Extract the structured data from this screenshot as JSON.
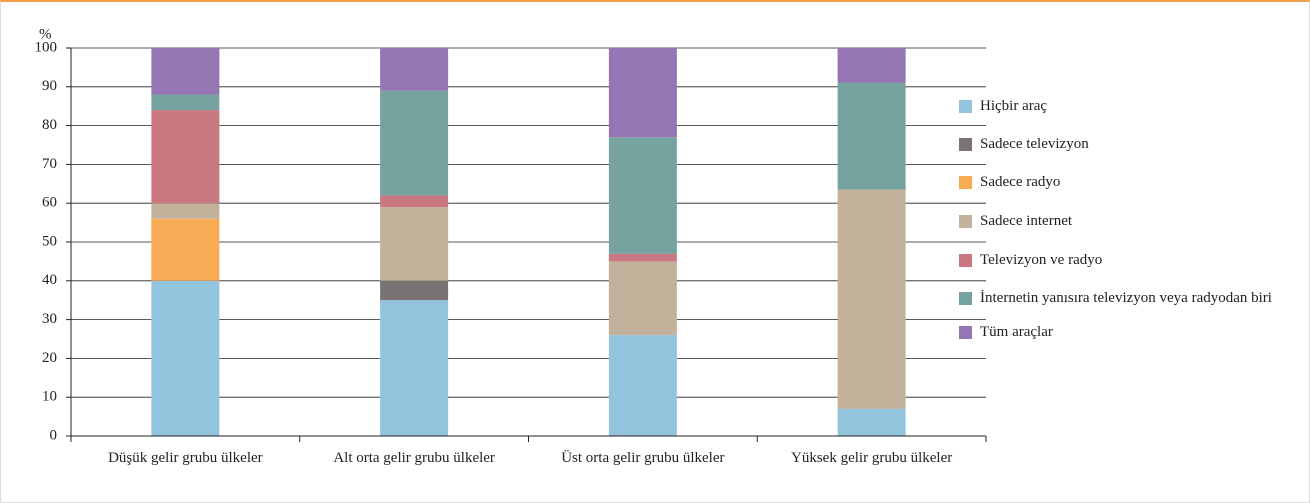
{
  "chart_data": {
    "type": "stacked_bar",
    "ylabel": "%",
    "categories": [
      "Düşük gelir grubu ülkeler",
      "Alt orta gelir grubu ülkeler",
      "Üst orta gelir grubu ülkeler",
      "Yüksek gelir grubu ülkeler"
    ],
    "series": [
      {
        "name": "Hiçbir araç",
        "color": "#93c4de",
        "values": [
          40,
          35,
          26,
          7
        ]
      },
      {
        "name": "Sadece televizyon",
        "color": "#7a7374",
        "values": [
          0,
          5,
          0,
          0
        ]
      },
      {
        "name": "Sadece radyo",
        "color": "#f7ab55",
        "values": [
          16,
          0,
          0,
          0
        ]
      },
      {
        "name": "Sadece internet",
        "color": "#c2b19b",
        "values": [
          4,
          19,
          19,
          56.5
        ]
      },
      {
        "name": "Televizyon ve radyo",
        "color": "#c97882",
        "values": [
          24,
          3,
          2,
          0
        ]
      },
      {
        "name": "İnternetin yanısıra televizyon veya radyodan biri",
        "color": "#76a39f",
        "values": [
          4,
          27,
          30,
          27.5
        ]
      },
      {
        "name": "Tüm araçlar",
        "color": "#9576b5",
        "values": [
          12,
          11,
          23,
          9
        ]
      }
    ],
    "ylim": [
      0,
      100
    ],
    "yticks": [
      0,
      10,
      20,
      30,
      40,
      50,
      60,
      70,
      80,
      90,
      100
    ],
    "grid": true
  }
}
